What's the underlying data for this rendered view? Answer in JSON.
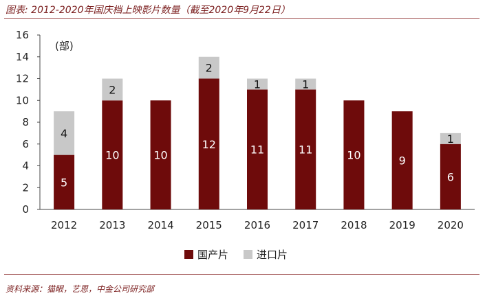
{
  "title": "图表: 2012-2020年国庆档上映影片数量（截至2020年9月22日）",
  "source": "资料来源：猫眼，艺恩，中金公司研究部",
  "chart_data": {
    "type": "bar",
    "stacked": true,
    "unit_label": "(部)",
    "categories": [
      "2012",
      "2013",
      "2014",
      "2015",
      "2016",
      "2017",
      "2018",
      "2019",
      "2020"
    ],
    "series": [
      {
        "name": "国产片",
        "color": "#6e0b0b",
        "values": [
          5,
          10,
          10,
          12,
          11,
          11,
          10,
          9,
          6
        ]
      },
      {
        "name": "进口片",
        "color": "#c8c8c8",
        "values": [
          4,
          2,
          0,
          2,
          1,
          1,
          0,
          0,
          1
        ]
      }
    ],
    "ylim": [
      0,
      16
    ],
    "yticks": [
      0,
      2,
      4,
      6,
      8,
      10,
      12,
      14,
      16
    ],
    "grid": false,
    "legend_position": "bottom"
  }
}
